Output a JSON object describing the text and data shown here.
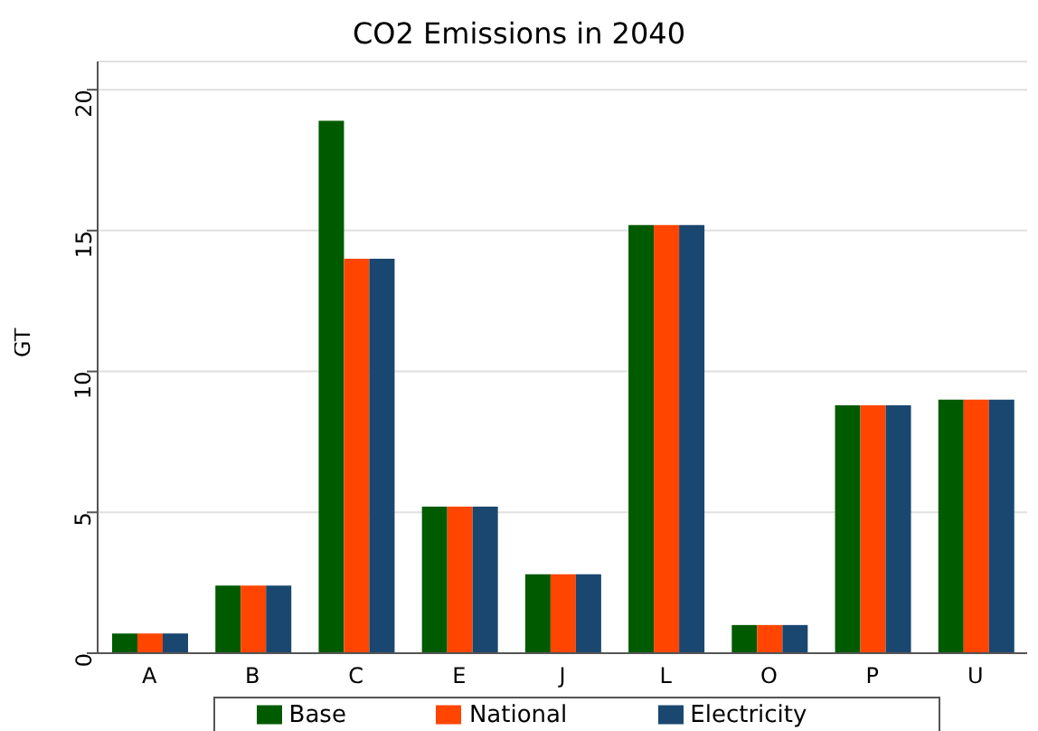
{
  "chart_data": {
    "type": "bar",
    "title": "CO2 Emissions in 2040",
    "ylabel": "GT",
    "categories": [
      "A",
      "B",
      "C",
      "E",
      "J",
      "L",
      "O",
      "P",
      "U"
    ],
    "series": [
      {
        "name": "Base",
        "color": "#005a00",
        "values": [
          0.7,
          2.4,
          18.9,
          5.2,
          2.8,
          15.2,
          1.0,
          8.8,
          9.0
        ]
      },
      {
        "name": "National",
        "color": "#ff4500",
        "values": [
          0.7,
          2.4,
          14.0,
          5.2,
          2.8,
          15.2,
          1.0,
          8.8,
          9.0
        ]
      },
      {
        "name": "Electricity",
        "color": "#1a476f",
        "values": [
          0.7,
          2.4,
          14.0,
          5.2,
          2.8,
          15.2,
          1.0,
          8.8,
          9.0
        ]
      }
    ],
    "ylim": [
      0,
      21
    ],
    "yticks": [
      0,
      5,
      10,
      15,
      20
    ],
    "grid": "y",
    "legend": "bottom"
  }
}
